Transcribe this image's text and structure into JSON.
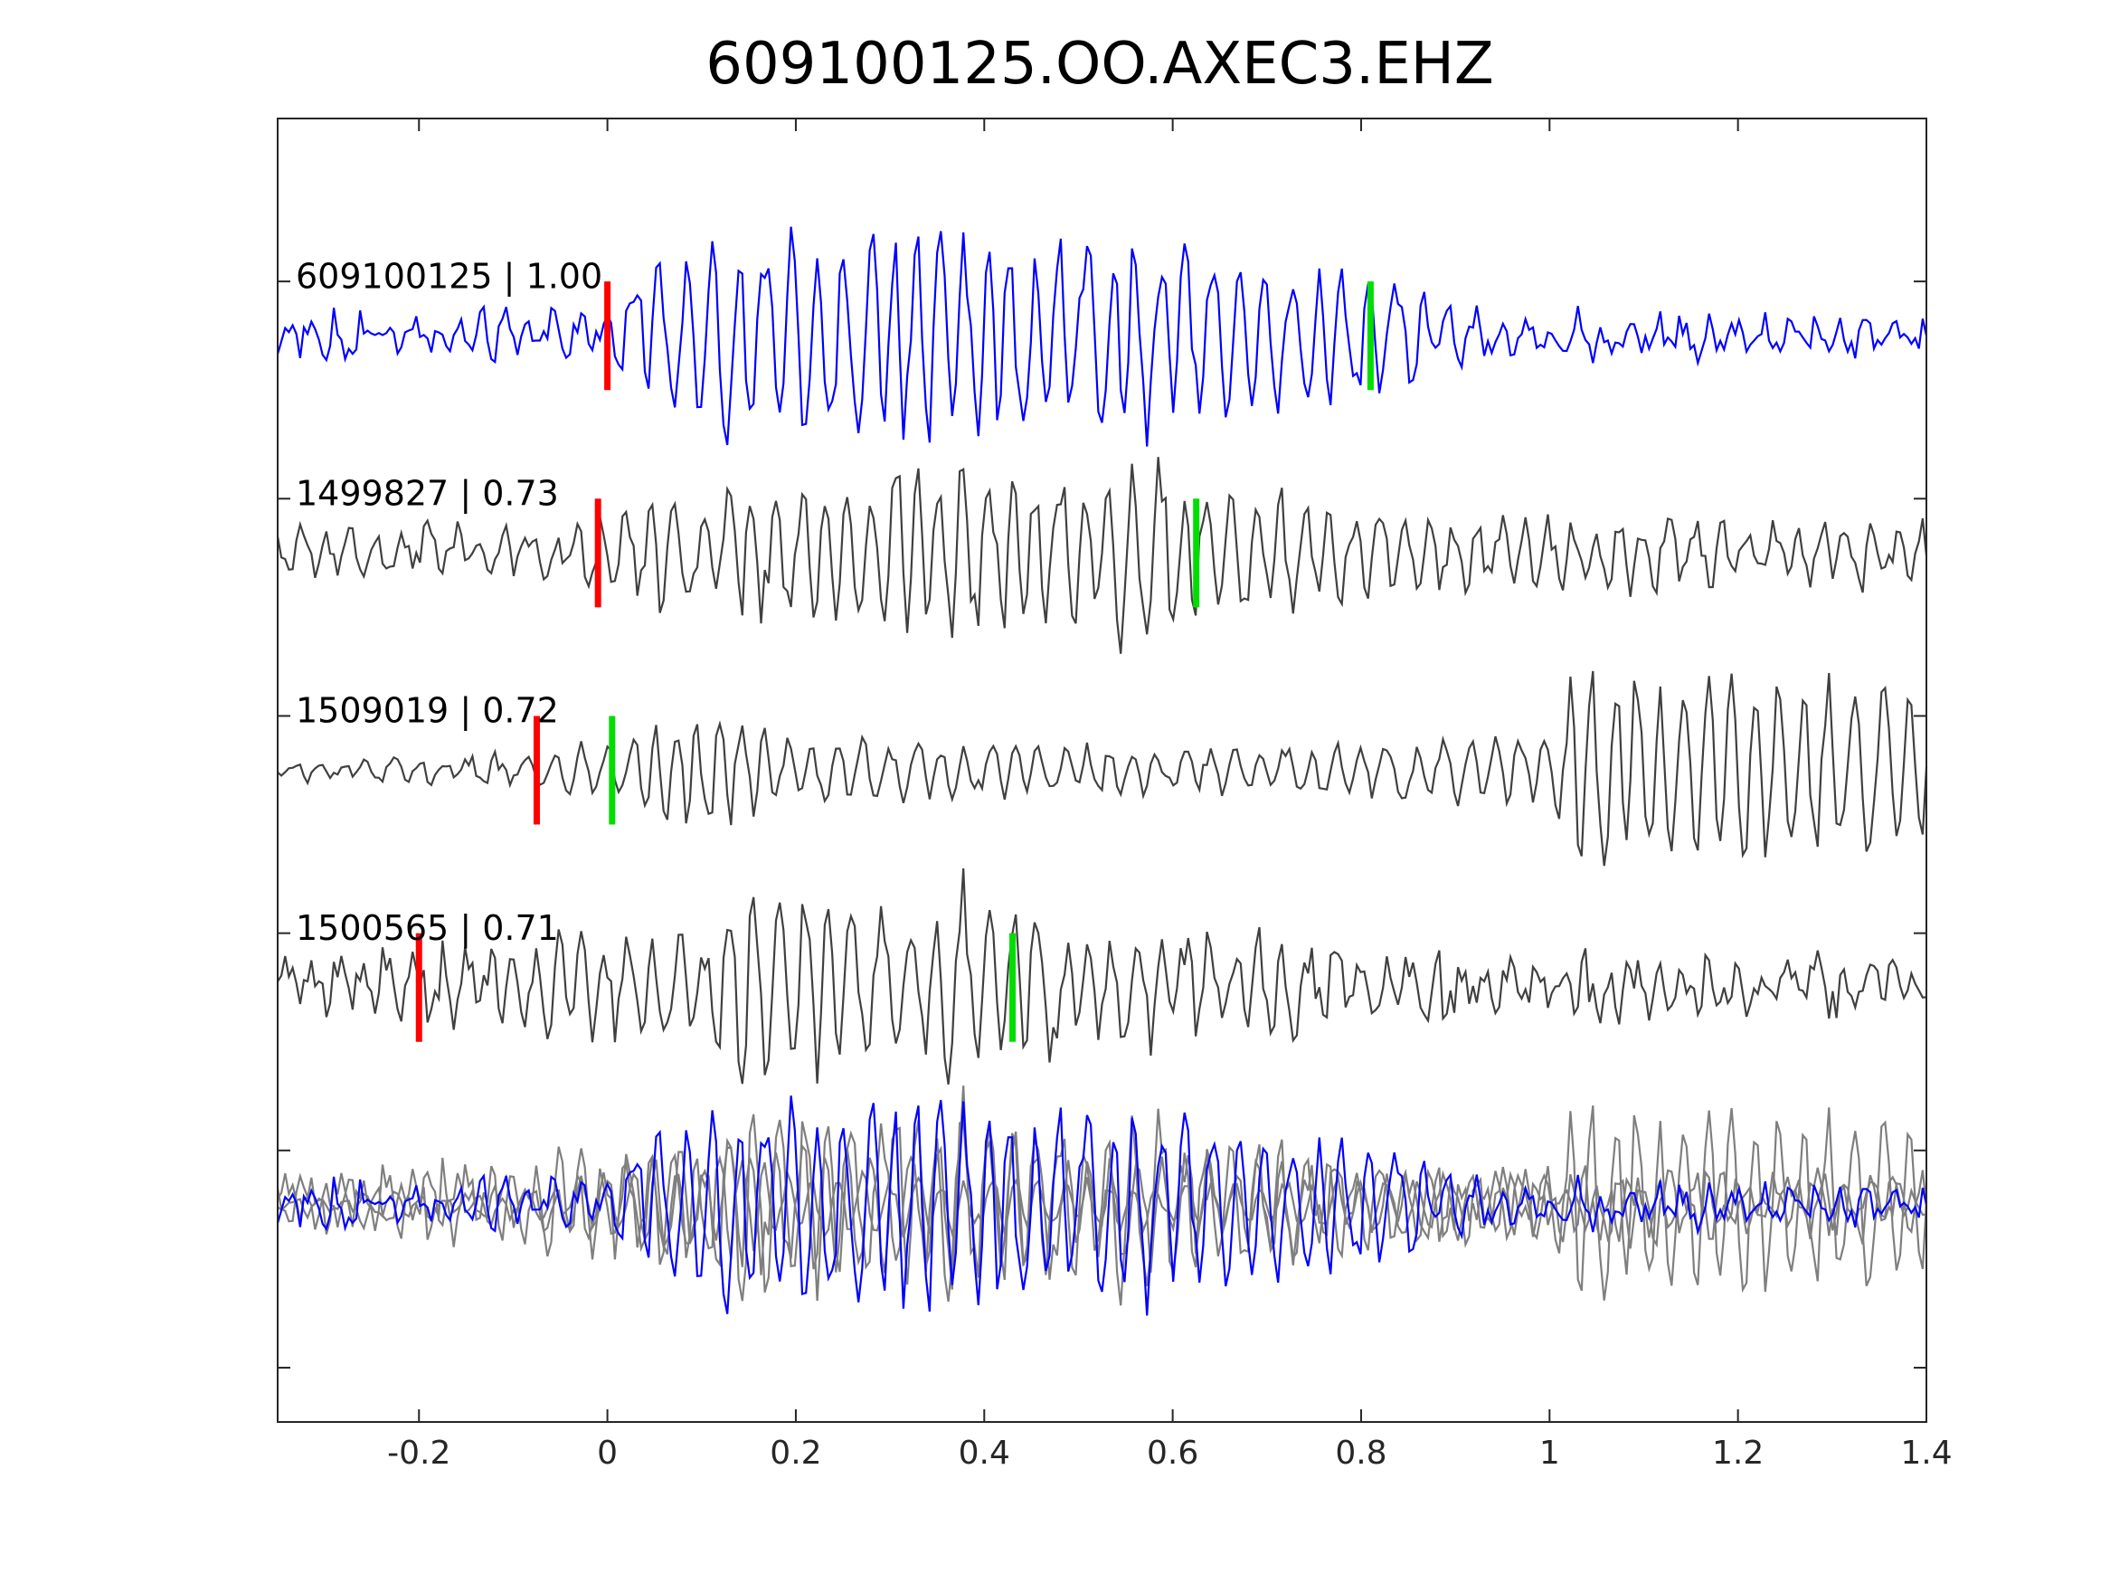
{
  "chart_data": {
    "type": "line",
    "title": "609100125.OO.AXEC3.EHZ",
    "xlabel": "",
    "ylabel": "",
    "xlim": [
      -0.35,
      1.4
    ],
    "ylim": [
      0,
      6
    ],
    "x_ticks": [
      -0.2,
      0,
      0.2,
      0.4,
      0.6,
      0.8,
      1,
      1.2,
      1.4
    ],
    "x_tick_labels": [
      "-0.2",
      "0",
      "0.2",
      "0.4",
      "0.6",
      "0.8",
      "1",
      "1.2",
      "1.4"
    ],
    "y_ticks": [
      0.25,
      1.25,
      2.25,
      3.25,
      4.25,
      5.25
    ],
    "grid": false,
    "legend": "none",
    "colors": {
      "reference": "#0000ff",
      "matched": "#404040",
      "overlay_matched": "#7f7f7f",
      "p_pick": "#ff0000",
      "s_pick": "#00dd00",
      "axis": "#262626"
    },
    "series": [
      {
        "label": "609100125 | 1.00",
        "offset": 5,
        "color": "#0000ff",
        "p_pick": 0.0,
        "s_pick": 0.81,
        "noise_amp": 0.13,
        "envelope": [
          [
            -0.35,
            0.14
          ],
          [
            0.0,
            0.16
          ],
          [
            0.03,
            0.5
          ],
          [
            0.08,
            0.8
          ],
          [
            0.38,
            0.85
          ],
          [
            0.62,
            0.75
          ],
          [
            0.72,
            0.65
          ],
          [
            0.8,
            0.5
          ],
          [
            0.86,
            0.45
          ],
          [
            0.9,
            0.25
          ],
          [
            1.0,
            0.15
          ],
          [
            1.4,
            0.12
          ]
        ]
      },
      {
        "label": "1499827 | 0.73",
        "offset": 4,
        "color": "#404040",
        "p_pick": -0.01,
        "s_pick": 0.625,
        "noise_amp": 0.14,
        "envelope": [
          [
            -0.35,
            0.15
          ],
          [
            -0.02,
            0.22
          ],
          [
            0.05,
            0.5
          ],
          [
            0.2,
            0.55
          ],
          [
            0.35,
            0.75
          ],
          [
            0.5,
            0.6
          ],
          [
            0.58,
            0.85
          ],
          [
            0.62,
            0.6
          ],
          [
            0.8,
            0.35
          ],
          [
            1.0,
            0.3
          ],
          [
            1.4,
            0.22
          ]
        ]
      },
      {
        "label": "1509019 | 0.72",
        "offset": 3,
        "color": "#404040",
        "p_pick": -0.075,
        "s_pick": 0.005,
        "noise_amp": 0.06,
        "envelope": [
          [
            -0.35,
            0.06
          ],
          [
            -0.1,
            0.12
          ],
          [
            0.0,
            0.25
          ],
          [
            0.05,
            0.35
          ],
          [
            0.1,
            0.55
          ],
          [
            0.2,
            0.3
          ],
          [
            0.45,
            0.2
          ],
          [
            0.7,
            0.2
          ],
          [
            0.8,
            0.2
          ],
          [
            1.0,
            0.3
          ],
          [
            1.03,
            0.95
          ],
          [
            1.1,
            0.85
          ],
          [
            1.2,
            0.95
          ],
          [
            1.4,
            0.7
          ]
        ]
      },
      {
        "label": "1500565 | 0.71",
        "offset": 2,
        "color": "#404040",
        "p_pick": -0.2,
        "s_pick": 0.43,
        "noise_amp": 0.2,
        "envelope": [
          [
            -0.35,
            0.2
          ],
          [
            -0.2,
            0.3
          ],
          [
            0.1,
            0.5
          ],
          [
            0.15,
            0.95
          ],
          [
            0.3,
            0.6
          ],
          [
            0.4,
            0.85
          ],
          [
            0.45,
            0.5
          ],
          [
            0.6,
            0.45
          ],
          [
            0.8,
            0.3
          ],
          [
            1.0,
            0.2
          ],
          [
            1.4,
            0.13
          ]
        ]
      }
    ],
    "overlay": {
      "offset": 1,
      "description_series": "all traces superimposed"
    }
  }
}
